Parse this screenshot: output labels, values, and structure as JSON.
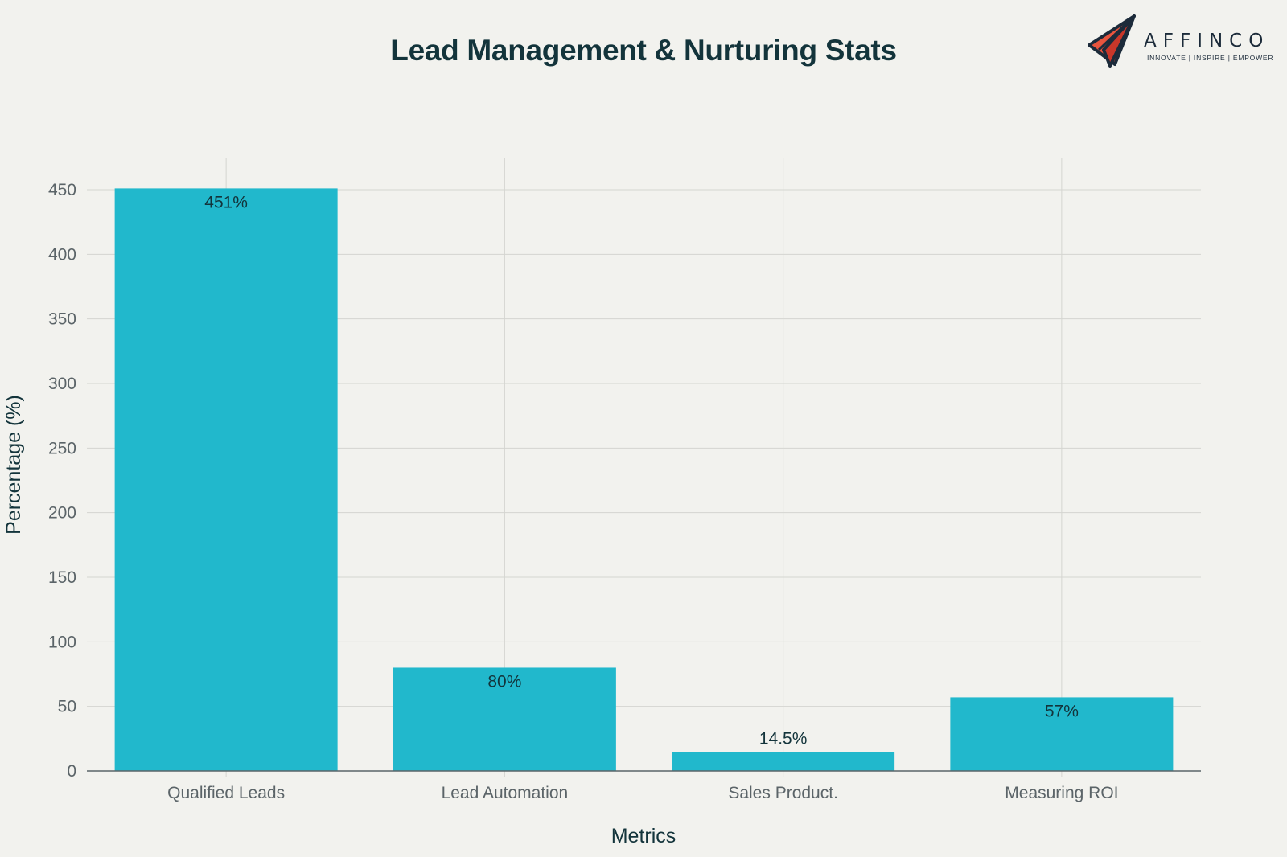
{
  "logo": {
    "brand": "AFFINCO",
    "tagline": "INNOVATE | INSPIRE | EMPOWER"
  },
  "chart_data": {
    "type": "bar",
    "title": "Lead Management & Nurturing Stats",
    "xlabel": "Metrics",
    "ylabel": "Percentage (%)",
    "categories": [
      "Qualified Leads",
      "Lead Automation",
      "Sales Product.",
      "Measuring ROI"
    ],
    "values": [
      451,
      80,
      14.5,
      57
    ],
    "data_labels": [
      "451%",
      "80%",
      "14.5%",
      "57%"
    ],
    "ylim": [
      0,
      475
    ],
    "yticks": [
      0,
      50,
      100,
      150,
      200,
      250,
      300,
      350,
      400,
      450
    ],
    "grid": true,
    "bar_color": "#21b8cc",
    "grid_color": "#d4d5d0",
    "axis_color": "#5b6468"
  }
}
